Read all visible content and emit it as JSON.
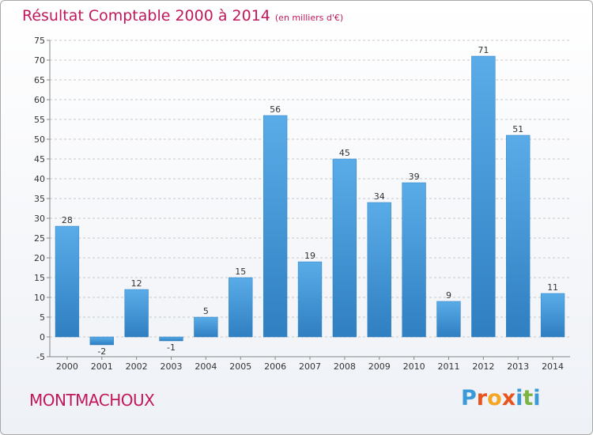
{
  "title": "Résultat Comptable 2000 à 2014",
  "subtitle": "(en milliers d'€)",
  "commune": "MONTMACHOUX",
  "logo": {
    "text": "Proxiti",
    "colors": [
      "#3a9ad9",
      "#e8541e",
      "#f5a623",
      "#e8541e",
      "#3a9ad9",
      "#7cb342",
      "#3a9ad9"
    ]
  },
  "colors": {
    "title": "#c2185b",
    "bar_top": "#5aace8",
    "bar_bottom": "#2f7fc1",
    "grid": "#c8c8c8"
  },
  "chart_data": {
    "type": "bar",
    "categories": [
      "2000",
      "2001",
      "2002",
      "2003",
      "2004",
      "2005",
      "2006",
      "2007",
      "2008",
      "2009",
      "2010",
      "2011",
      "2012",
      "2013",
      "2014"
    ],
    "values": [
      28,
      -2,
      12,
      -1,
      5,
      15,
      56,
      19,
      45,
      34,
      39,
      9,
      71,
      51,
      11
    ],
    "data_labels": [
      "28",
      "-2",
      "12",
      "-1",
      "5",
      "15",
      "56",
      "19",
      "45",
      "34",
      "39",
      "9",
      "71",
      "51",
      "11"
    ],
    "yticks": [
      "-5",
      "0",
      "5",
      "10",
      "15",
      "20",
      "25",
      "30",
      "35",
      "40",
      "45",
      "50",
      "55",
      "60",
      "65",
      "70",
      "75"
    ],
    "ylim": [
      -5,
      75
    ],
    "grid": "horizontal dashed",
    "legend": "none"
  }
}
